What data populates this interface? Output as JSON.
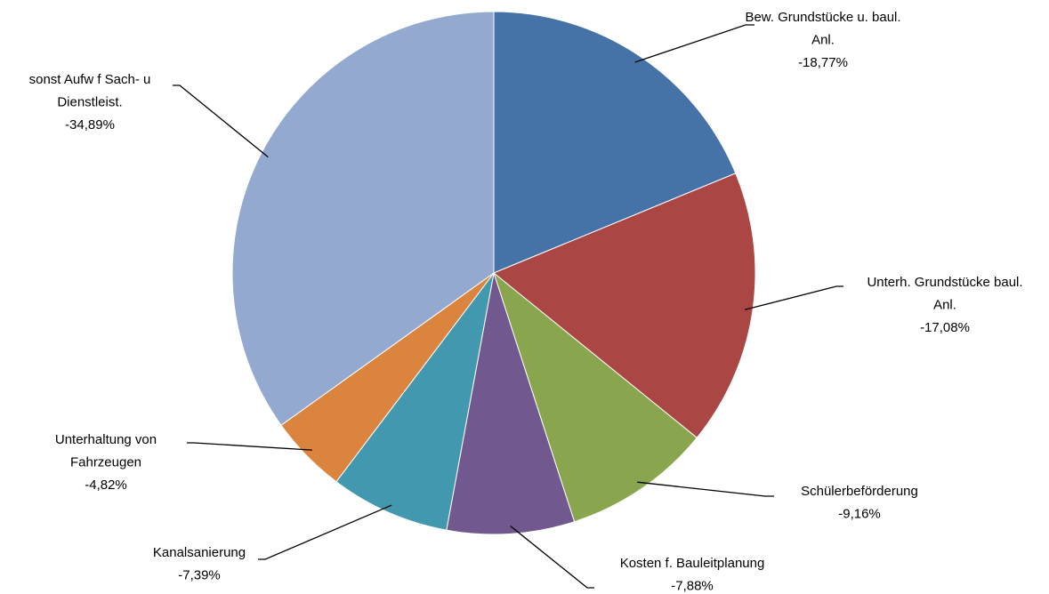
{
  "chart_data": {
    "type": "pie",
    "categories": [
      "Bew. Grundstücke u. baul. Anl.",
      "Unterh. Grundstücke baul. Anl.",
      "Schülerbeförderung",
      "Kosten f. Bauleitplanung",
      "Kanalsanierung",
      "Unterhaltung von Fahrzeugen",
      "sonst Aufw f  Sach- u Dienstleist."
    ],
    "values": [
      -18.77,
      -17.08,
      -9.16,
      -7.88,
      -7.39,
      -4.82,
      -34.89
    ],
    "value_labels": [
      "-18,77%",
      "-17,08%",
      "-9,16%",
      "-7,88%",
      "-7,39%",
      "-4,82%",
      "-34,89%"
    ],
    "colors": [
      "#4572a7",
      "#aa4643",
      "#89a54e",
      "#71588f",
      "#4198af",
      "#db843d",
      "#93a9cf"
    ]
  }
}
